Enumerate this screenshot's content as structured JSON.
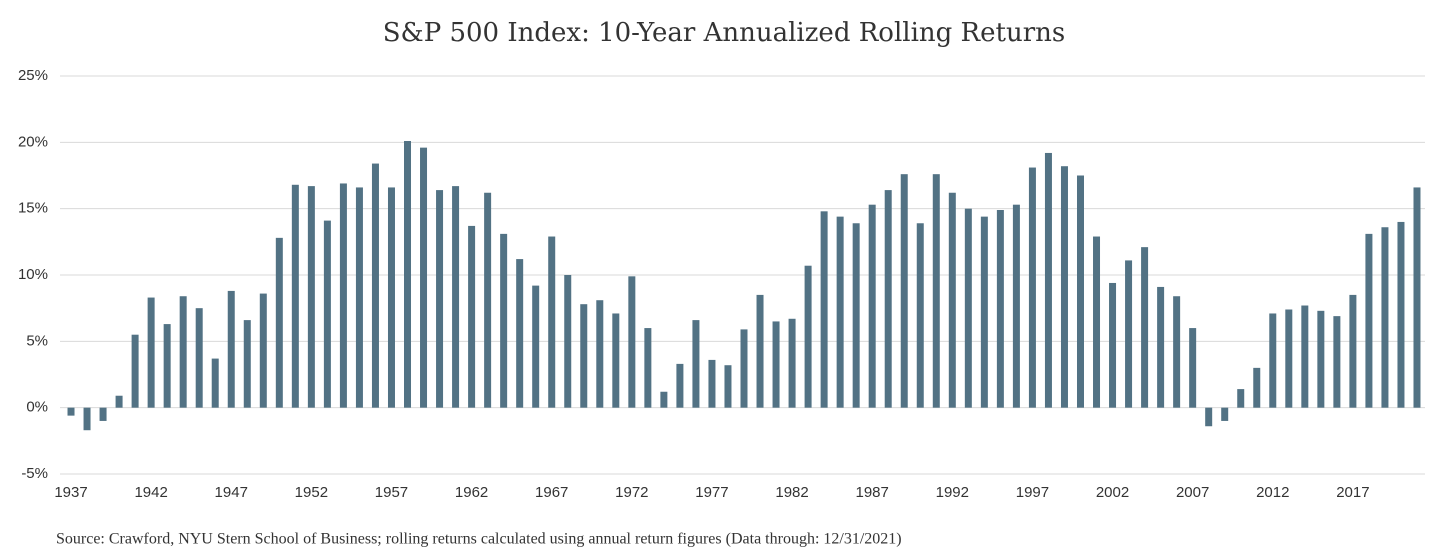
{
  "chart_data": {
    "type": "bar",
    "title": "S&P 500 Index: 10-Year Annualized Rolling Returns",
    "source": "Source: Crawford, NYU Stern School of Business; rolling returns calculated using annual return figures (Data through: 12/31/2021)",
    "categories": [
      "1937",
      null,
      null,
      null,
      null,
      "1942",
      null,
      null,
      null,
      null,
      "1947",
      null,
      null,
      null,
      null,
      "1952",
      null,
      null,
      null,
      null,
      "1957",
      null,
      null,
      null,
      null,
      "1962",
      null,
      null,
      null,
      null,
      "1967",
      null,
      null,
      null,
      null,
      "1972",
      null,
      null,
      null,
      null,
      "1977",
      null,
      null,
      null,
      null,
      "1982",
      null,
      null,
      null,
      null,
      "1987",
      null,
      null,
      null,
      null,
      "1992",
      null,
      null,
      null,
      null,
      "1997",
      null,
      null,
      null,
      null,
      "2002",
      null,
      null,
      null,
      null,
      "2007",
      null,
      null,
      null,
      null,
      "2012",
      null,
      null,
      null,
      null,
      "2017",
      null,
      null,
      null,
      null
    ],
    "values": [
      -0.6,
      -1.7,
      -1.0,
      0.9,
      5.5,
      8.3,
      6.3,
      8.4,
      7.5,
      3.7,
      8.8,
      6.6,
      8.6,
      12.8,
      16.8,
      16.7,
      14.1,
      16.9,
      16.6,
      18.4,
      16.6,
      20.1,
      19.6,
      16.4,
      16.7,
      13.7,
      16.2,
      13.1,
      11.2,
      9.2,
      12.9,
      10.0,
      7.8,
      8.1,
      7.1,
      9.9,
      6.0,
      1.2,
      3.3,
      6.6,
      3.6,
      3.2,
      5.9,
      8.5,
      6.5,
      6.7,
      10.7,
      14.8,
      14.4,
      13.9,
      15.3,
      16.4,
      17.6,
      13.9,
      17.6,
      16.2,
      15.0,
      14.4,
      14.9,
      15.3,
      18.1,
      19.2,
      18.2,
      17.5,
      12.9,
      9.4,
      11.1,
      12.1,
      9.1,
      8.4,
      6.0,
      -1.4,
      -1.0,
      1.4,
      3.0,
      7.1,
      7.4,
      7.7,
      7.3,
      6.9,
      8.5,
      13.1,
      13.6,
      14.0,
      16.6
    ],
    "color": "#527284",
    "ylim": [
      -5,
      25
    ],
    "yticks": [
      {
        "value": -5,
        "label": "-5%"
      },
      {
        "value": 0,
        "label": "0%"
      },
      {
        "value": 5,
        "label": "5%"
      },
      {
        "value": 10,
        "label": "10%"
      },
      {
        "value": 15,
        "label": "15%"
      },
      {
        "value": 20,
        "label": "20%"
      },
      {
        "value": 25,
        "label": "25%"
      }
    ],
    "grid": true
  }
}
